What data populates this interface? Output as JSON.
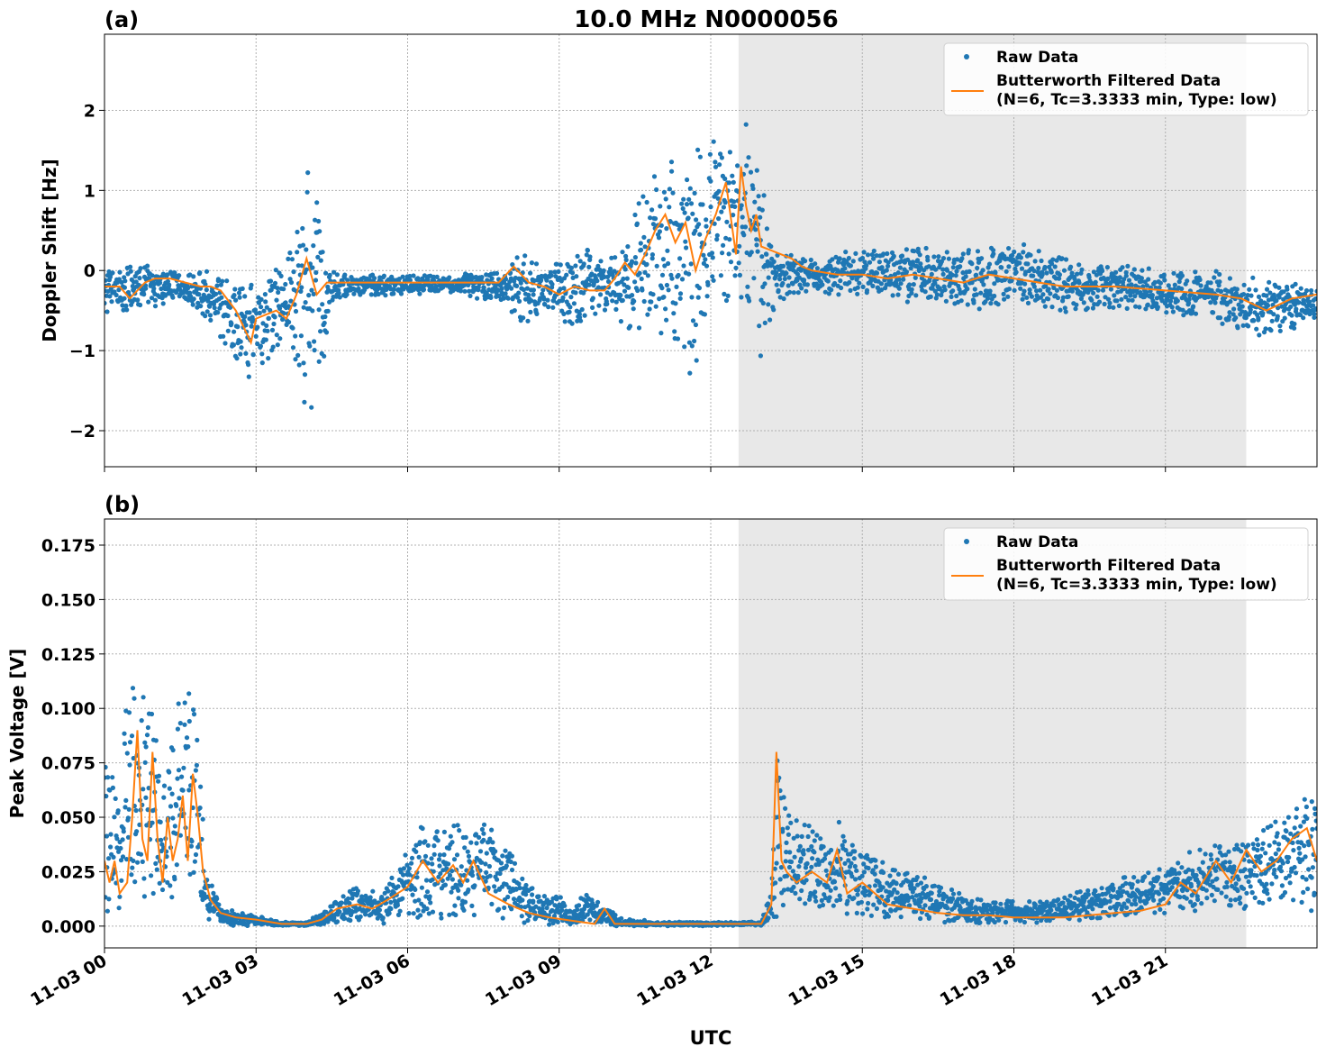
{
  "title": "10.0 MHz N0000056",
  "xlabel": "UTC",
  "colors": {
    "raw": "#1f77b4",
    "filtered": "#ff7f0e",
    "shade": "#e8e8e8",
    "grid": "#b0b0b0"
  },
  "x_ticks": [
    {
      "hour": 0,
      "label": "11-03 00"
    },
    {
      "hour": 3,
      "label": "11-03 03"
    },
    {
      "hour": 6,
      "label": "11-03 06"
    },
    {
      "hour": 9,
      "label": "11-03 09"
    },
    {
      "hour": 12,
      "label": "11-03 12"
    },
    {
      "hour": 15,
      "label": "11-03 15"
    },
    {
      "hour": 18,
      "label": "11-03 18"
    },
    {
      "hour": 21,
      "label": "11-03 21"
    }
  ],
  "chart_data": [
    {
      "type": "scatter",
      "panel_label": "(a)",
      "ylabel": "Doppler Shift [Hz]",
      "xlim_hours": [
        0,
        24
      ],
      "ylim": [
        -2.45,
        2.95
      ],
      "y_ticks": [
        {
          "value": 2,
          "label": "2"
        },
        {
          "value": 1,
          "label": "1"
        },
        {
          "value": 0,
          "label": "0"
        },
        {
          "value": -1,
          "label": "−1"
        },
        {
          "value": -2,
          "label": "−2"
        }
      ],
      "shaded_region_hours": [
        12.55,
        22.6
      ],
      "grid": true,
      "legend_position": "top-right",
      "legend": {
        "raw": "Raw Data",
        "filtered_line1": "Butterworth Filtered Data",
        "filtered_line2": "(N=6, Tc=3.3333 min, Type: low)"
      },
      "series": [
        {
          "name": "Raw Data",
          "envelope": {
            "x": [
              0,
              0.3,
              0.6,
              1.0,
              1.3,
              1.7,
              2.0,
              2.3,
              2.6,
              2.9,
              3.1,
              3.4,
              3.7,
              3.9,
              4.1,
              4.3,
              4.5,
              5.0,
              6.0,
              7.0,
              8.0,
              8.3,
              8.6,
              8.9,
              9.2,
              9.5,
              9.8,
              10.1,
              10.4,
              10.7,
              11.0,
              11.3,
              11.6,
              11.9,
              12.2,
              12.4,
              12.6,
              12.8,
              13.0,
              13.2,
              13.5,
              13.8,
              14.2,
              14.6,
              15.0,
              15.5,
              16.0,
              16.5,
              17.0,
              17.5,
              18.0,
              18.5,
              19.0,
              19.5,
              20.0,
              21.0,
              22.0,
              22.5,
              23.0,
              23.5,
              24.0
            ],
            "low": [
              -0.6,
              -0.5,
              -0.55,
              -0.5,
              -0.4,
              -0.45,
              -0.6,
              -0.9,
              -1.2,
              -1.4,
              -1.2,
              -1.1,
              -1.0,
              -1.7,
              -1.9,
              -1.5,
              -0.4,
              -0.35,
              -0.3,
              -0.3,
              -0.45,
              -0.8,
              -0.6,
              -0.5,
              -0.9,
              -0.7,
              -0.5,
              -0.6,
              -0.9,
              -1.0,
              -0.9,
              -1.1,
              -1.4,
              -0.8,
              -0.6,
              -0.5,
              -0.7,
              -1.0,
              -1.2,
              -0.7,
              -0.4,
              -0.3,
              -0.3,
              -0.35,
              -0.35,
              -0.4,
              -0.45,
              -0.5,
              -0.55,
              -0.5,
              -0.45,
              -0.5,
              -0.55,
              -0.55,
              -0.5,
              -0.55,
              -0.65,
              -0.8,
              -0.85,
              -0.75,
              -0.6
            ],
            "high": [
              0.05,
              0.05,
              0.05,
              0.1,
              0.05,
              0.0,
              0.0,
              -0.05,
              0.05,
              0.0,
              -0.1,
              0.05,
              0.4,
              1.2,
              1.5,
              0.7,
              0.0,
              -0.05,
              -0.05,
              -0.05,
              0.05,
              0.3,
              0.1,
              0.1,
              0.2,
              0.5,
              0.2,
              0.2,
              0.6,
              1.2,
              1.3,
              1.5,
              1.8,
              1.6,
              1.9,
              2.0,
              2.1,
              1.8,
              1.2,
              0.6,
              0.3,
              0.2,
              0.1,
              0.3,
              0.3,
              0.3,
              0.35,
              0.3,
              0.3,
              0.35,
              0.4,
              0.3,
              0.2,
              0.15,
              0.1,
              0.05,
              0.0,
              -0.05,
              -0.1,
              -0.15,
              -0.2
            ]
          }
        },
        {
          "name": "Butterworth Filtered Data (N=6, Tc=3.3333 min, Type: low)",
          "x": [
            0,
            0.3,
            0.5,
            0.8,
            1.0,
            1.3,
            1.6,
            1.9,
            2.1,
            2.3,
            2.6,
            2.9,
            3.0,
            3.2,
            3.4,
            3.6,
            3.8,
            4.0,
            4.2,
            4.4,
            4.6,
            5.0,
            6.0,
            7.0,
            7.8,
            8.1,
            8.4,
            8.7,
            9.0,
            9.3,
            9.6,
            9.9,
            10.1,
            10.3,
            10.5,
            10.7,
            10.9,
            11.1,
            11.3,
            11.5,
            11.7,
            11.9,
            12.1,
            12.3,
            12.5,
            12.6,
            12.7,
            12.8,
            12.9,
            13.0,
            13.2,
            13.4,
            13.6,
            13.8,
            14.0,
            14.5,
            15.0,
            15.5,
            16.0,
            16.5,
            17.0,
            17.5,
            18.0,
            18.5,
            19.0,
            19.5,
            20.0,
            21.0,
            22.0,
            22.5,
            23.0,
            23.5,
            24.0
          ],
          "y": [
            -0.2,
            -0.2,
            -0.35,
            -0.15,
            -0.1,
            -0.1,
            -0.15,
            -0.2,
            -0.2,
            -0.25,
            -0.5,
            -0.9,
            -0.6,
            -0.55,
            -0.5,
            -0.6,
            -0.3,
            0.15,
            -0.3,
            -0.15,
            -0.15,
            -0.15,
            -0.15,
            -0.15,
            -0.15,
            0.05,
            -0.15,
            -0.2,
            -0.3,
            -0.2,
            -0.25,
            -0.25,
            -0.1,
            0.1,
            -0.05,
            0.2,
            0.5,
            0.7,
            0.35,
            0.6,
            0.0,
            0.4,
            0.7,
            1.1,
            0.2,
            1.3,
            0.8,
            0.5,
            0.7,
            0.3,
            0.25,
            0.2,
            0.15,
            0.05,
            0.0,
            -0.05,
            -0.05,
            -0.1,
            -0.05,
            -0.1,
            -0.15,
            -0.05,
            -0.1,
            -0.15,
            -0.2,
            -0.2,
            -0.2,
            -0.25,
            -0.3,
            -0.35,
            -0.5,
            -0.35,
            -0.3
          ]
        }
      ]
    },
    {
      "type": "scatter",
      "panel_label": "(b)",
      "ylabel": "Peak Voltage [V]",
      "xlim_hours": [
        0,
        24
      ],
      "ylim": [
        -0.01,
        0.187
      ],
      "y_ticks": [
        {
          "value": 0.175,
          "label": "0.175"
        },
        {
          "value": 0.15,
          "label": "0.150"
        },
        {
          "value": 0.125,
          "label": "0.125"
        },
        {
          "value": 0.1,
          "label": "0.100"
        },
        {
          "value": 0.075,
          "label": "0.075"
        },
        {
          "value": 0.05,
          "label": "0.050"
        },
        {
          "value": 0.025,
          "label": "0.025"
        },
        {
          "value": 0.0,
          "label": "0.000"
        }
      ],
      "shaded_region_hours": [
        12.55,
        22.6
      ],
      "grid": true,
      "legend_position": "top-right",
      "legend": {
        "raw": "Raw Data",
        "filtered_line1": "Butterworth Filtered Data",
        "filtered_line2": "(N=6, Tc=3.3333 min, Type: low)"
      },
      "series": [
        {
          "name": "Raw Data",
          "envelope": {
            "x": [
              0,
              0.2,
              0.4,
              0.6,
              0.8,
              1.0,
              1.2,
              1.4,
              1.6,
              1.8,
              2.0,
              2.3,
              2.6,
              3.0,
              3.5,
              4.0,
              4.5,
              5.0,
              5.5,
              6.0,
              6.3,
              6.6,
              7.0,
              7.4,
              7.8,
              8.2,
              8.6,
              9.0,
              9.3,
              9.6,
              9.9,
              10.2,
              11.0,
              12.0,
              13.0,
              13.2,
              13.35,
              13.5,
              14.0,
              14.5,
              15.0,
              15.5,
              16.0,
              16.5,
              17.0,
              17.5,
              18.0,
              18.5,
              19.0,
              19.5,
              20.0,
              20.5,
              21.0,
              21.5,
              22.0,
              22.5,
              23.0,
              23.5,
              24.0
            ],
            "low": [
              0.005,
              0.005,
              0.005,
              0.01,
              0.01,
              0.008,
              0.008,
              0.01,
              0.01,
              0.01,
              0.0,
              0.0,
              0.0,
              0.0,
              0.0,
              0.0,
              0.0,
              0.0,
              0.0,
              0.0,
              0.0,
              0.0,
              0.0,
              0.0,
              0.0,
              0.0,
              0.0,
              0.0,
              0.0,
              0.0,
              0.0,
              0.0,
              0.0,
              0.0,
              0.0,
              0.0,
              0.0,
              0.005,
              0.005,
              0.005,
              0.003,
              0.002,
              0.002,
              0.001,
              0.001,
              0.001,
              0.001,
              0.001,
              0.001,
              0.002,
              0.002,
              0.003,
              0.005,
              0.005,
              0.005,
              0.005,
              0.005,
              0.005,
              0.005
            ],
            "high": [
              0.1,
              0.07,
              0.1,
              0.14,
              0.12,
              0.1,
              0.08,
              0.11,
              0.12,
              0.12,
              0.03,
              0.01,
              0.007,
              0.005,
              0.002,
              0.002,
              0.01,
              0.02,
              0.015,
              0.04,
              0.05,
              0.05,
              0.05,
              0.05,
              0.05,
              0.03,
              0.015,
              0.015,
              0.01,
              0.02,
              0.01,
              0.004,
              0.002,
              0.002,
              0.002,
              0.02,
              0.1,
              0.06,
              0.05,
              0.05,
              0.04,
              0.03,
              0.025,
              0.02,
              0.015,
              0.012,
              0.012,
              0.012,
              0.015,
              0.018,
              0.022,
              0.025,
              0.03,
              0.035,
              0.04,
              0.04,
              0.05,
              0.06,
              0.07
            ]
          }
        },
        {
          "name": "Butterworth Filtered Data (N=6, Tc=3.3333 min, Type: low)",
          "x": [
            0,
            0.1,
            0.2,
            0.3,
            0.45,
            0.55,
            0.65,
            0.75,
            0.85,
            0.95,
            1.05,
            1.15,
            1.25,
            1.35,
            1.45,
            1.55,
            1.65,
            1.75,
            1.85,
            1.95,
            2.1,
            2.3,
            2.6,
            3.0,
            3.5,
            4.0,
            4.3,
            4.6,
            5.0,
            5.3,
            5.6,
            6.0,
            6.3,
            6.6,
            6.9,
            7.1,
            7.3,
            7.6,
            8.0,
            8.4,
            8.8,
            9.1,
            9.4,
            9.7,
            9.9,
            10.1,
            10.4,
            11.0,
            12.0,
            12.5,
            13.0,
            13.2,
            13.3,
            13.4,
            13.5,
            13.7,
            14.0,
            14.3,
            14.5,
            14.7,
            15.0,
            15.5,
            16.0,
            16.5,
            17.0,
            17.5,
            18.0,
            18.5,
            19.0,
            19.5,
            20.0,
            20.5,
            21.0,
            21.3,
            21.6,
            22.0,
            22.3,
            22.6,
            22.9,
            23.2,
            23.5,
            23.8,
            24.0
          ],
          "y": [
            0.03,
            0.02,
            0.03,
            0.015,
            0.02,
            0.05,
            0.09,
            0.04,
            0.03,
            0.08,
            0.04,
            0.02,
            0.05,
            0.03,
            0.04,
            0.06,
            0.03,
            0.07,
            0.05,
            0.025,
            0.012,
            0.006,
            0.004,
            0.003,
            0.001,
            0.001,
            0.003,
            0.008,
            0.01,
            0.008,
            0.012,
            0.018,
            0.03,
            0.02,
            0.028,
            0.02,
            0.03,
            0.015,
            0.01,
            0.006,
            0.004,
            0.003,
            0.002,
            0.001,
            0.008,
            0.001,
            0.001,
            0.001,
            0.001,
            0.001,
            0.001,
            0.01,
            0.08,
            0.03,
            0.025,
            0.02,
            0.025,
            0.02,
            0.035,
            0.015,
            0.02,
            0.01,
            0.008,
            0.006,
            0.005,
            0.005,
            0.004,
            0.004,
            0.004,
            0.005,
            0.006,
            0.007,
            0.01,
            0.02,
            0.015,
            0.03,
            0.02,
            0.035,
            0.025,
            0.03,
            0.04,
            0.045,
            0.03
          ]
        }
      ]
    }
  ]
}
